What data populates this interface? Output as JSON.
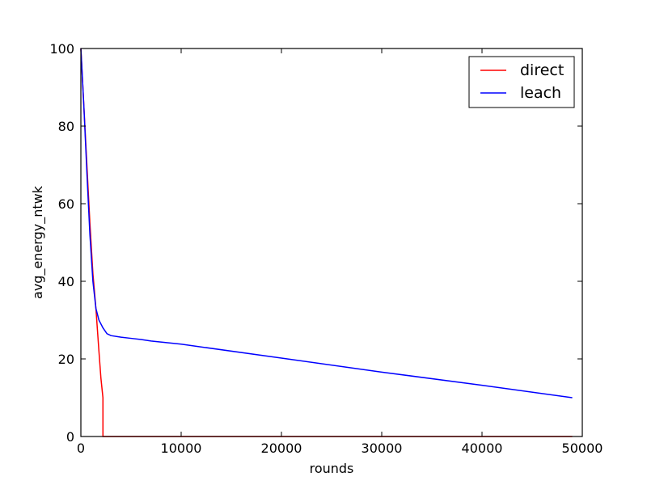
{
  "chart_data": {
    "type": "line",
    "xlabel": "rounds",
    "ylabel": "avg_energy_ntwk",
    "xlim": [
      0,
      50000
    ],
    "ylim": [
      0,
      100
    ],
    "x_ticks": [
      0,
      10000,
      20000,
      30000,
      40000,
      50000
    ],
    "y_ticks": [
      0,
      20,
      40,
      60,
      80,
      100
    ],
    "grid": false,
    "legend_position": "top-right",
    "series": [
      {
        "name": "direct",
        "color": "#ff0000",
        "points": [
          [
            0,
            100
          ],
          [
            300,
            85
          ],
          [
            600,
            70
          ],
          [
            900,
            55
          ],
          [
            1200,
            42
          ],
          [
            1500,
            33
          ],
          [
            1800,
            22
          ],
          [
            2000,
            15
          ],
          [
            2200,
            10
          ],
          [
            2201,
            0
          ],
          [
            49000,
            0
          ]
        ]
      },
      {
        "name": "leach",
        "color": "#0000ff",
        "points": [
          [
            0,
            100
          ],
          [
            300,
            85
          ],
          [
            600,
            68
          ],
          [
            900,
            52
          ],
          [
            1200,
            40
          ],
          [
            1500,
            33
          ],
          [
            1800,
            30
          ],
          [
            2200,
            28
          ],
          [
            2600,
            26.5
          ],
          [
            3000,
            26
          ],
          [
            4000,
            25.6
          ],
          [
            5000,
            25.3
          ],
          [
            6000,
            25
          ],
          [
            7000,
            24.6
          ],
          [
            10000,
            23.8
          ],
          [
            20000,
            20.2
          ],
          [
            30000,
            16.6
          ],
          [
            40000,
            13.2
          ],
          [
            49000,
            10
          ]
        ]
      }
    ]
  }
}
